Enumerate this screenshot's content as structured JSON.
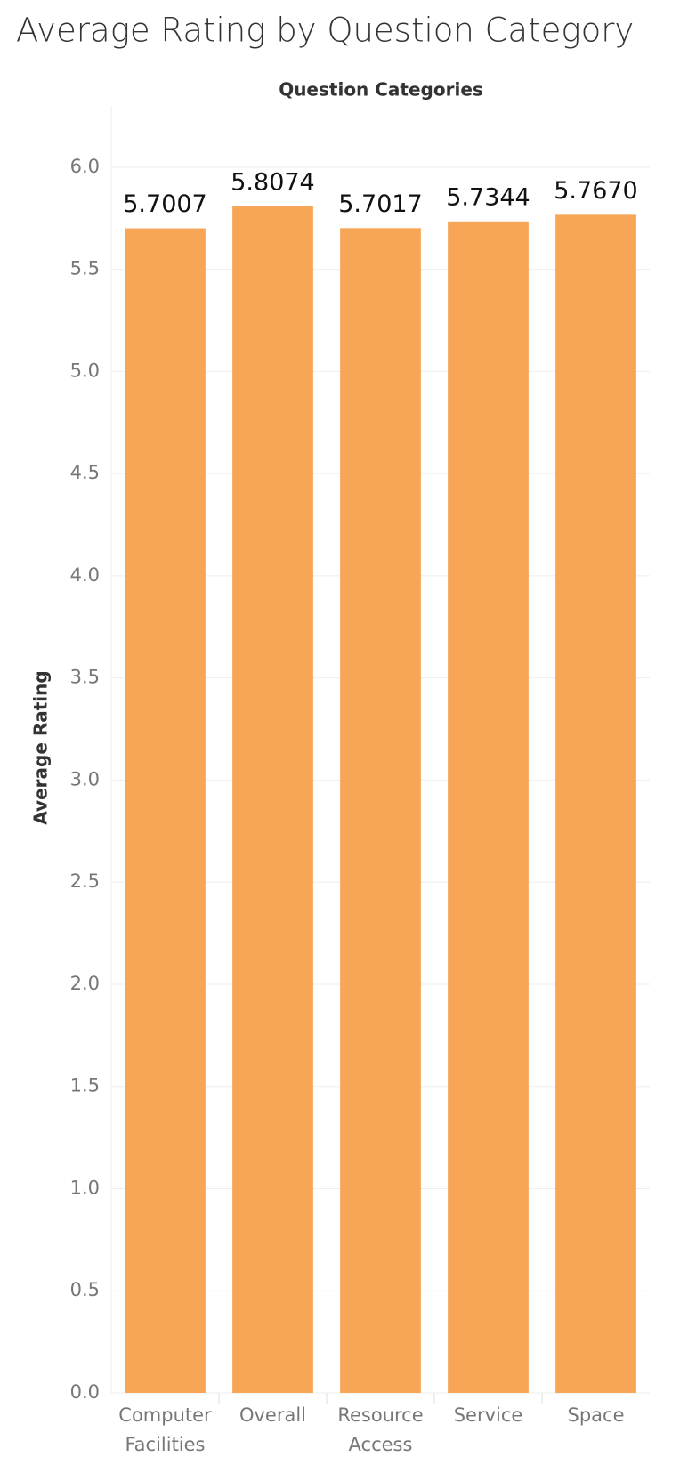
{
  "chart_data": {
    "type": "bar",
    "title": "Average Rating by Question Category",
    "x_label": "Question Categories",
    "y_label": "Average Rating",
    "categories": [
      "Computer Facilities",
      "Overall",
      "Resource Access",
      "Service",
      "Space"
    ],
    "values": [
      5.7007,
      5.8074,
      5.7017,
      5.7344,
      5.767
    ],
    "value_labels": [
      "5.7007",
      "5.8074",
      "5.7017",
      "5.7344",
      "5.7670"
    ],
    "color": "#f6a656",
    "ylim": [
      0,
      6.3
    ],
    "yticks": [
      {
        "value": 0,
        "label": "0.0"
      },
      0.5,
      {
        "value": 1,
        "label": "1.0"
      },
      1.5,
      {
        "value": 2,
        "label": "2.0"
      },
      2.5,
      {
        "value": 3,
        "label": "3.0"
      },
      3.5,
      {
        "value": 4,
        "label": "4.0"
      },
      4.5,
      {
        "value": 5,
        "label": "5.0"
      },
      5.5,
      {
        "value": 6,
        "label": "6.0"
      }
    ],
    "grid": true
  }
}
